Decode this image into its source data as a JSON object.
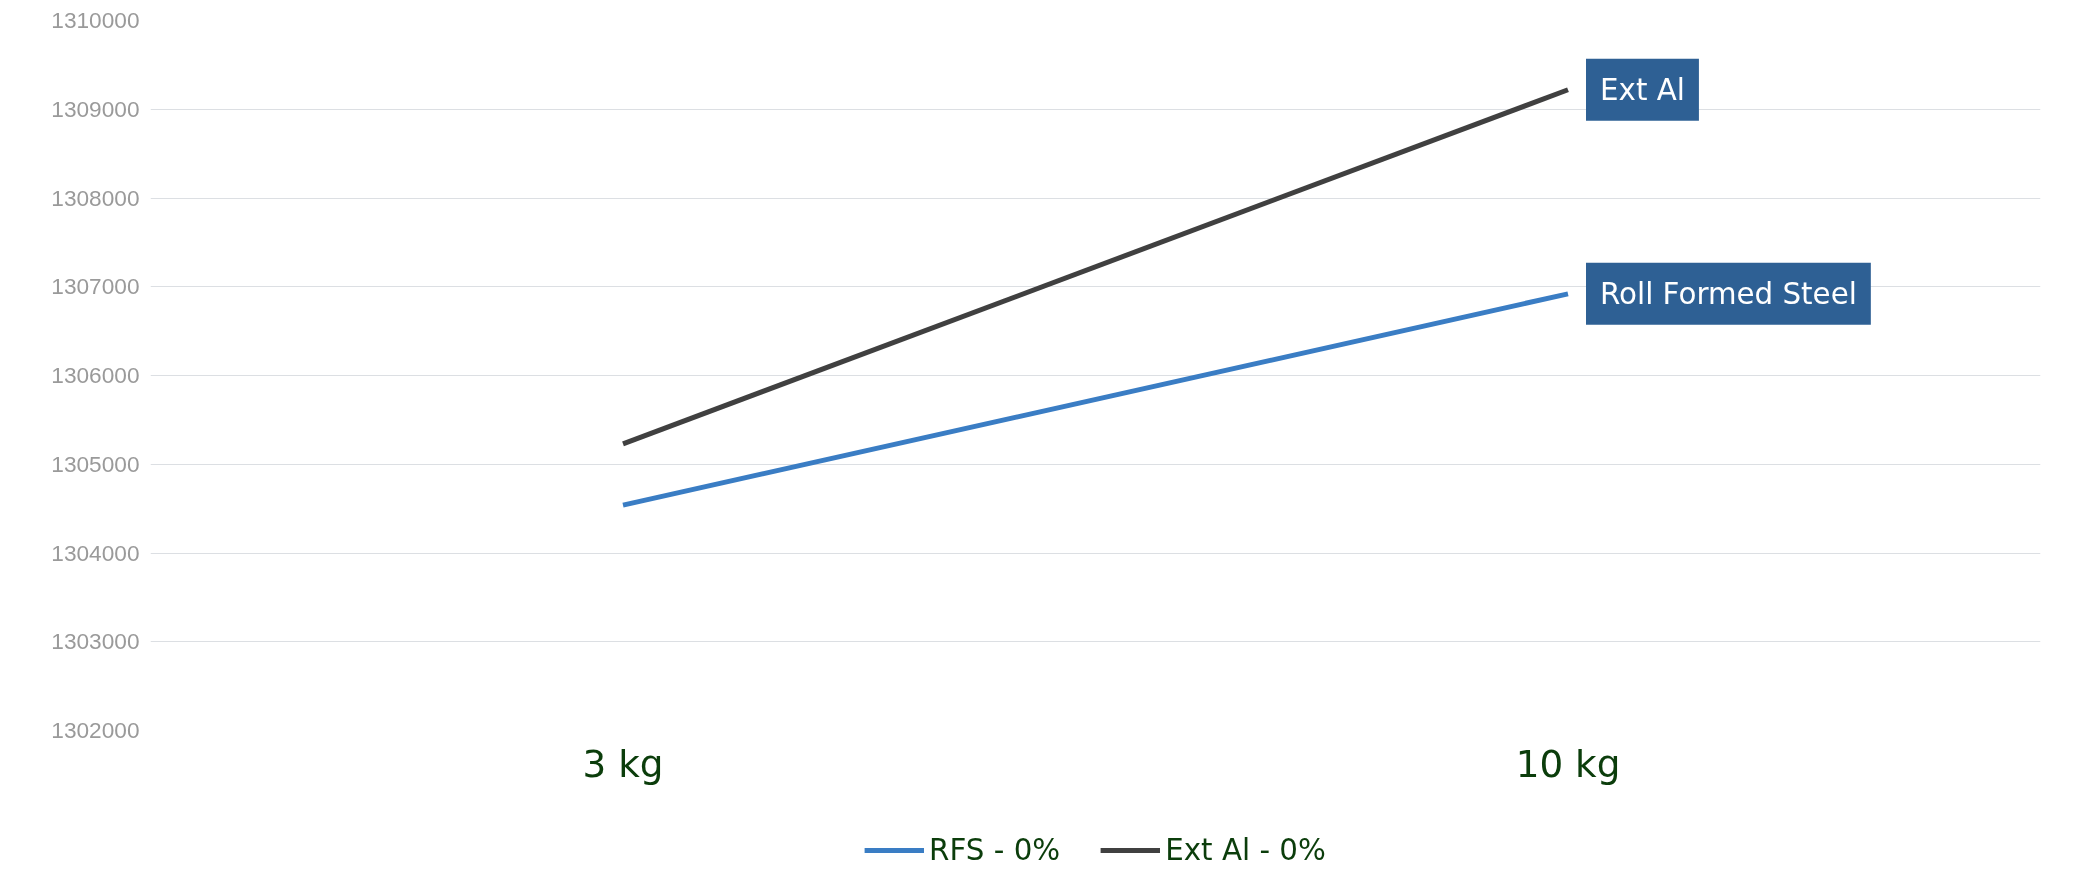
{
  "chart_data": {
    "type": "line",
    "categories": [
      "3 kg",
      "10 kg"
    ],
    "series": [
      {
        "name": "RFS - 0%",
        "color": "#3a7dc4",
        "values": [
          1304540,
          1306920
        ]
      },
      {
        "name": "Ext Al - 0%",
        "color": "#404040",
        "values": [
          1305230,
          1309220
        ]
      }
    ],
    "annotations": [
      {
        "text": "Ext Al",
        "x": "10 kg",
        "y": 1309220
      },
      {
        "text": "Roll Formed Steel",
        "x": "10 kg",
        "y": 1306920
      }
    ],
    "ylim": [
      1302000,
      1310000
    ],
    "yticks": [
      1302000,
      1303000,
      1304000,
      1305000,
      1306000,
      1307000,
      1308000,
      1309000,
      1310000
    ],
    "grid": "y",
    "legend": "bottom",
    "line_style": "solid"
  }
}
